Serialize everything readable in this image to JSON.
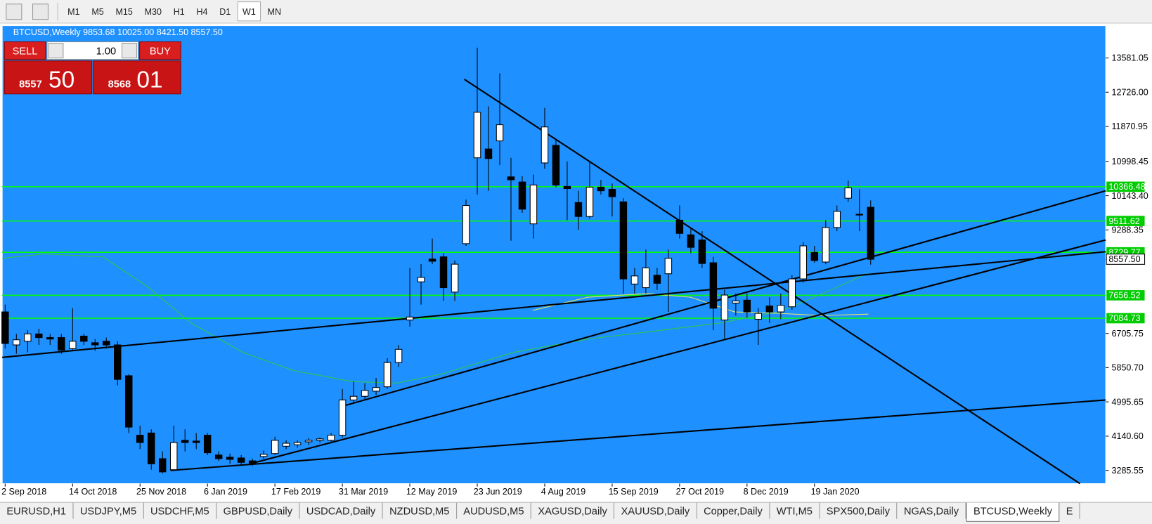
{
  "toolbar": {
    "timeframes": [
      "M1",
      "M5",
      "M15",
      "M30",
      "H1",
      "H4",
      "D1",
      "W1",
      "MN"
    ],
    "active_index": 7
  },
  "chart_data": {
    "type": "candlestick",
    "title": "BTCUSD,Weekly",
    "header_values": [
      "9853.68",
      "10025.00",
      "8421.50",
      "8557.50"
    ],
    "categories": [
      "2 Sep 2018",
      null,
      null,
      null,
      null,
      null,
      "14 Oct 2018",
      null,
      null,
      null,
      null,
      null,
      "25 Nov 2018",
      null,
      null,
      null,
      null,
      null,
      "6 Jan 2019",
      null,
      null,
      null,
      null,
      null,
      "17 Feb 2019",
      null,
      null,
      null,
      null,
      null,
      "31 Mar 2019",
      null,
      null,
      null,
      null,
      null,
      "12 May 2019",
      null,
      null,
      null,
      null,
      null,
      "23 Jun 2019",
      null,
      null,
      null,
      null,
      null,
      "4 Aug 2019",
      null,
      null,
      null,
      null,
      null,
      "15 Sep 2019",
      null,
      null,
      null,
      null,
      null,
      "27 Oct 2019",
      null,
      null,
      null,
      null,
      null,
      "8 Dec 2019",
      null,
      null,
      null,
      null,
      null,
      "19 Jan 2020",
      null,
      null,
      null,
      null,
      null
    ],
    "open": [
      7242,
      6418,
      6509,
      6692,
      6601,
      6601,
      6326,
      6637,
      6473,
      6509,
      6418,
      5648,
      4164,
      4219,
      3578,
      3303,
      4036,
      4018,
      4164,
      3670,
      3615,
      3596,
      3523,
      3633,
      3706,
      3889,
      3926,
      3999,
      4036,
      4036,
      4164,
      5044,
      5135,
      5263,
      5373,
      5978,
      7040,
      7993,
      8561,
      8616,
      7737,
      8946,
      11089,
      11309,
      11511,
      10613,
      10485,
      9440,
      10961,
      11401,
      10375,
      9972,
      9624,
      10356,
      10301,
      9990,
      7938,
      7847,
      8158,
      8195,
      9532,
      9166,
      9037,
      8469,
      7040,
      7462,
      7535,
      7059,
      7389,
      7242,
      7370,
      8066,
      8726,
      8488,
      9349,
      10081,
      9679,
      9853.68
    ],
    "high": [
      7425,
      6692,
      6784,
      6821,
      6692,
      6692,
      7334,
      6692,
      6564,
      6601,
      6509,
      5685,
      4402,
      4311,
      3761,
      4402,
      4311,
      4219,
      4219,
      3761,
      3706,
      3670,
      3578,
      3780,
      4128,
      4036,
      4036,
      4091,
      4109,
      4219,
      5318,
      5502,
      5465,
      5593,
      6088,
      6418,
      8341,
      8433,
      9074,
      8708,
      8525,
      10045,
      13837,
      12372,
      13196,
      11089,
      10631,
      10668,
      12335,
      11547,
      10998,
      10265,
      10998,
      10540,
      10448,
      10081,
      8341,
      8799,
      8341,
      8799,
      9898,
      9349,
      9257,
      8616,
      7792,
      7700,
      7700,
      7334,
      7608,
      7700,
      8158,
      8982,
      8891,
      9532,
      9898,
      10521,
      10301,
      10025
    ],
    "low": [
      6326,
      6198,
      6234,
      6418,
      6418,
      6198,
      6271,
      6418,
      6271,
      6326,
      5410,
      4219,
      3816,
      3303,
      3212,
      3267,
      3761,
      3816,
      3670,
      3523,
      3450,
      3431,
      3395,
      3578,
      3670,
      3816,
      3853,
      3926,
      3981,
      3981,
      4109,
      4952,
      5044,
      5172,
      5318,
      5868,
      6876,
      7425,
      8433,
      7517,
      7517,
      8891,
      10173,
      10265,
      10906,
      9019,
      9715,
      9074,
      10814,
      10356,
      9532,
      9294,
      9569,
      10173,
      9624,
      7700,
      7700,
      7700,
      7792,
      7242,
      9074,
      8708,
      8341,
      6784,
      6546,
      7150,
      7095,
      6418,
      6967,
      7059,
      7297,
      7975,
      8469,
      8433,
      9257,
      9990,
      9257,
      8421.5
    ],
    "close": [
      6454,
      6546,
      6692,
      6601,
      6564,
      6289,
      6509,
      6509,
      6418,
      6418,
      5557,
      4366,
      3981,
      3450,
      3248,
      3981,
      3981,
      3981,
      3725,
      3578,
      3560,
      3486,
      3450,
      3688,
      4036,
      3963,
      3981,
      4036,
      4073,
      4164,
      5044,
      5135,
      5282,
      5355,
      5978,
      6308,
      7114,
      8103,
      8506,
      7847,
      8433,
      9898,
      12225,
      11071,
      11914,
      10540,
      9807,
      10411,
      11859,
      10411,
      10320,
      9624,
      10356,
      10265,
      10118,
      8066,
      8140,
      8341,
      7956,
      8579,
      9202,
      8854,
      8451,
      7334,
      7663,
      7517,
      7242,
      7205,
      7242,
      7407,
      8066,
      8891,
      8525,
      9349,
      9752,
      10338,
      9660,
      8557.5
    ],
    "bull_color": "#ffffff",
    "bear_color": "#000000",
    "background": "#1e90ff",
    "ylim": [
      2955,
      14387
    ],
    "yticks": [
      13581.05,
      {
        "value": 12726,
        "label": "12726.00"
      },
      11870.95,
      10998.45,
      {
        "value": 10143.4,
        "label": "10143.40"
      },
      9288.35,
      6705.75,
      {
        "value": 5850.7,
        "label": "5850.70"
      },
      4995.65,
      {
        "value": 4140.6,
        "label": "4140.60"
      },
      3285.55
    ],
    "levels": [
      10366.48,
      9511.62,
      8729.77,
      7656.52,
      7084.73
    ],
    "level_color": "#00ff00",
    "bid": {
      "value": 8557.5,
      "label": "8557.50"
    }
  },
  "trade_panel": {
    "sell": "SELL",
    "buy": "BUY",
    "volume": "1.00",
    "bid_small": "8557",
    "bid_big": "50",
    "ask_small": "8568",
    "ask_big": "01"
  },
  "tabs": [
    "EURUSD,H1",
    "USDJPY,M5",
    "USDCHF,M5",
    "GBPUSD,Daily",
    "USDCAD,Daily",
    "NZDUSD,M5",
    "AUDUSD,M5",
    "XAGUSD,Daily",
    "XAUUSD,Daily",
    "Copper,Daily",
    "WTI,M5",
    "SPX500,Daily",
    "NGAS,Daily",
    "BTCUSD,Weekly",
    "E"
  ],
  "active_tab": 13
}
